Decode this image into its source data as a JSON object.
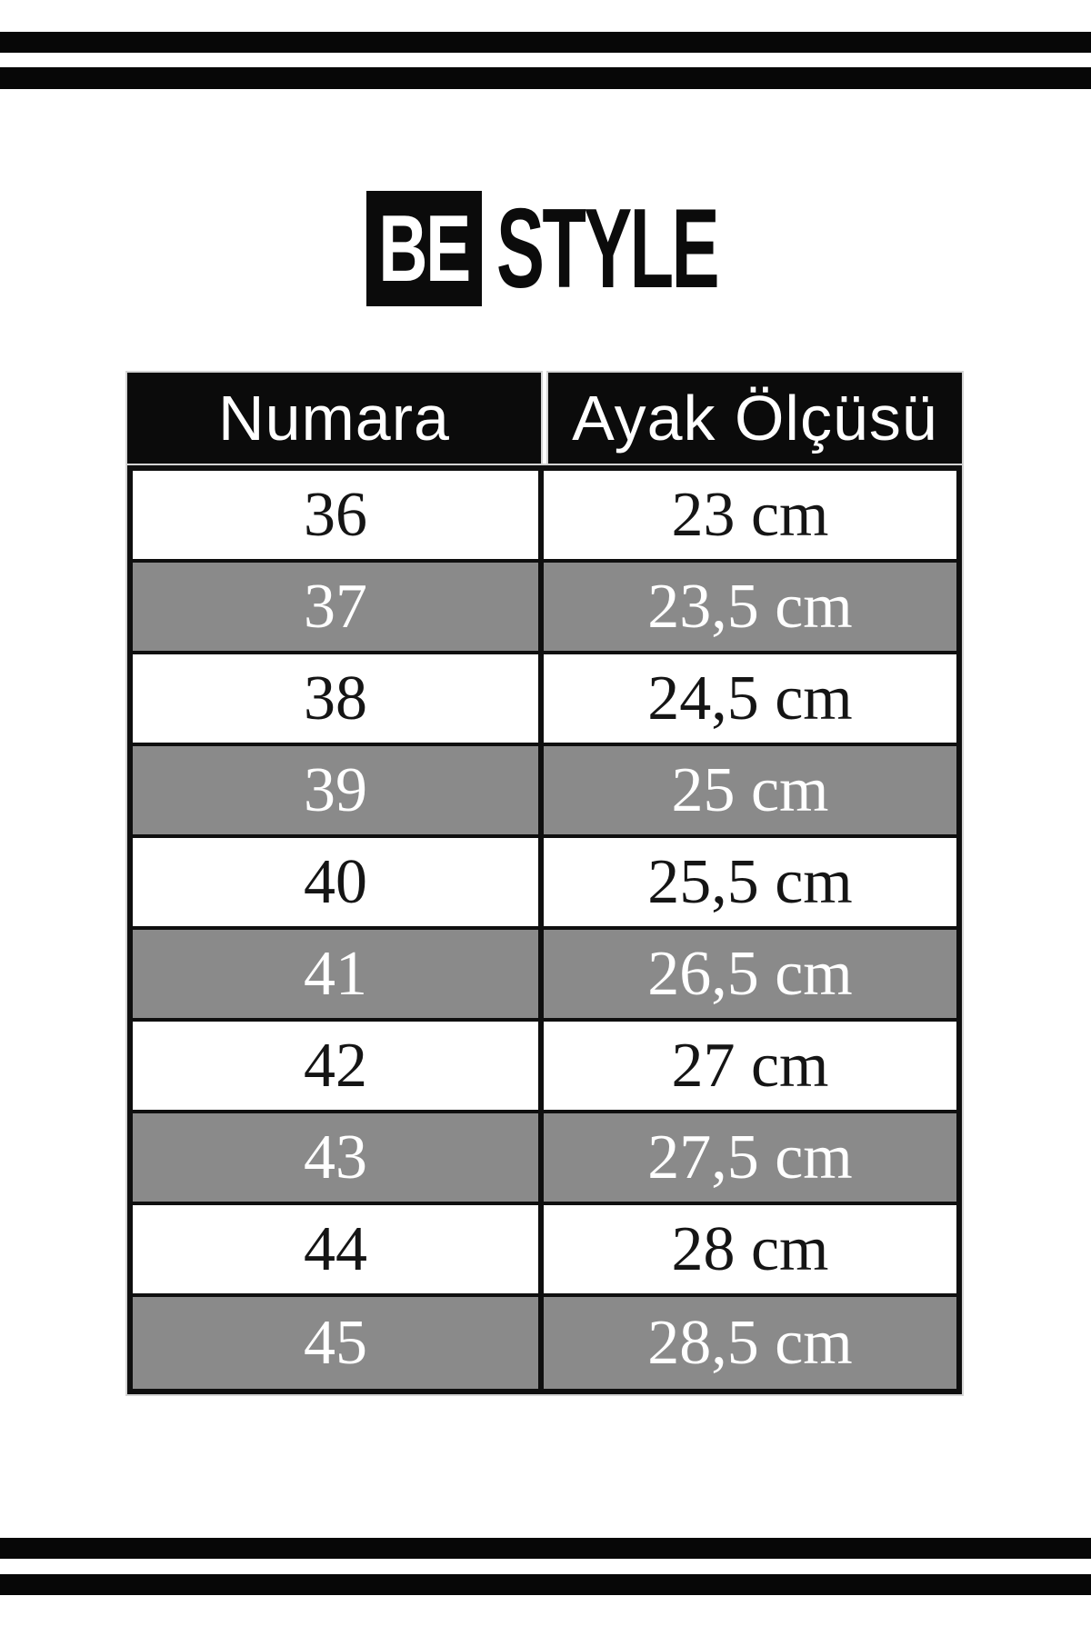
{
  "brand": {
    "be": "BE",
    "style": "STYLE"
  },
  "colors": {
    "page_bg": "#ffffff",
    "stripe_black": "#070707",
    "header_black": "#0b0b0b",
    "row_alt_gray": "#8a8a8a",
    "border_black": "#0f0f0f"
  },
  "chart_data": {
    "type": "table",
    "title": "BE STYLE",
    "columns": [
      "Numara",
      "Ayak Ölçüsü"
    ],
    "rows": [
      [
        "36",
        "23 cm"
      ],
      [
        "37",
        "23,5 cm"
      ],
      [
        "38",
        "24,5 cm"
      ],
      [
        "39",
        "25 cm"
      ],
      [
        "40",
        "25,5 cm"
      ],
      [
        "41",
        "26,5 cm"
      ],
      [
        "42",
        "27 cm"
      ],
      [
        "43",
        "27,5 cm"
      ],
      [
        "44",
        "28 cm"
      ],
      [
        "45",
        "28,5 cm"
      ]
    ]
  }
}
